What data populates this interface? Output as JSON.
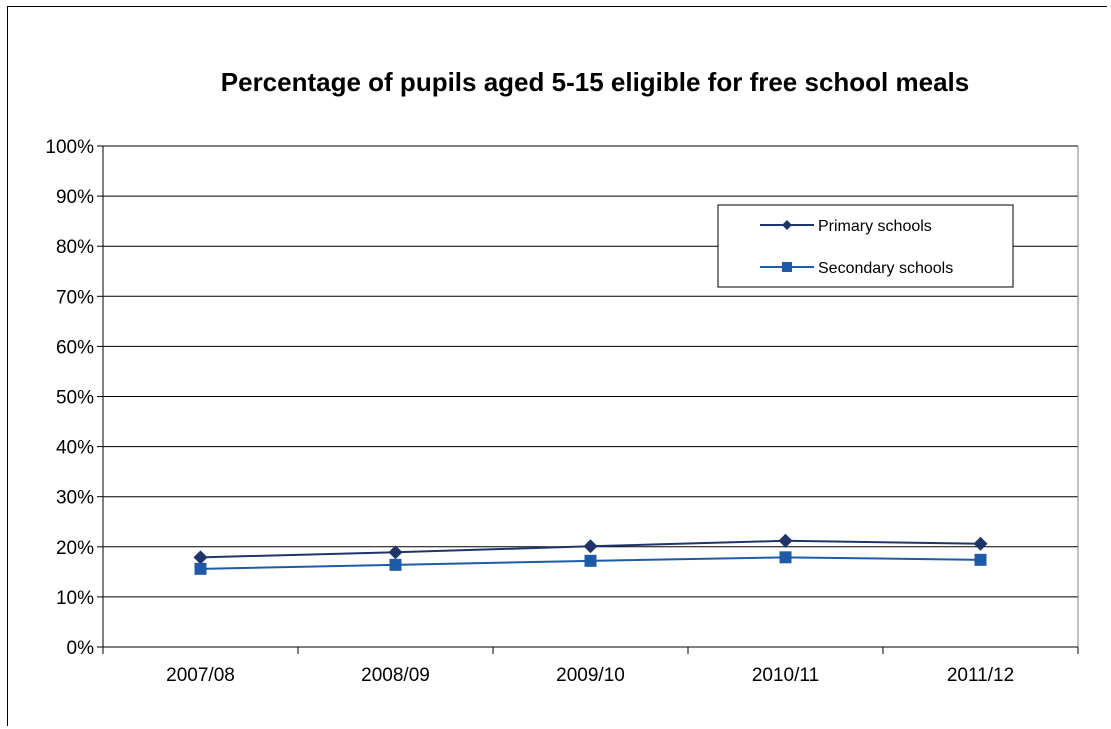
{
  "chart_data": {
    "type": "line",
    "title": "Percentage of pupils aged 5-15 eligible for free school meals",
    "xlabel": "",
    "ylabel": "",
    "categories": [
      "2007/08",
      "2008/09",
      "2009/10",
      "2010/11",
      "2011/12"
    ],
    "y_ticks": [
      "0%",
      "10%",
      "20%",
      "30%",
      "40%",
      "50%",
      "60%",
      "70%",
      "80%",
      "90%",
      "100%"
    ],
    "ylim": [
      0,
      100
    ],
    "grid": true,
    "legend_position": "top-right",
    "series": [
      {
        "name": "Primary schools",
        "values": [
          17.9,
          18.9,
          20.1,
          21.2,
          20.6
        ],
        "marker": "diamond",
        "color": "#1f3468"
      },
      {
        "name": "Secondary schools",
        "values": [
          15.6,
          16.4,
          17.2,
          17.9,
          17.4
        ],
        "marker": "square",
        "color": "#1f5aa6"
      }
    ]
  }
}
